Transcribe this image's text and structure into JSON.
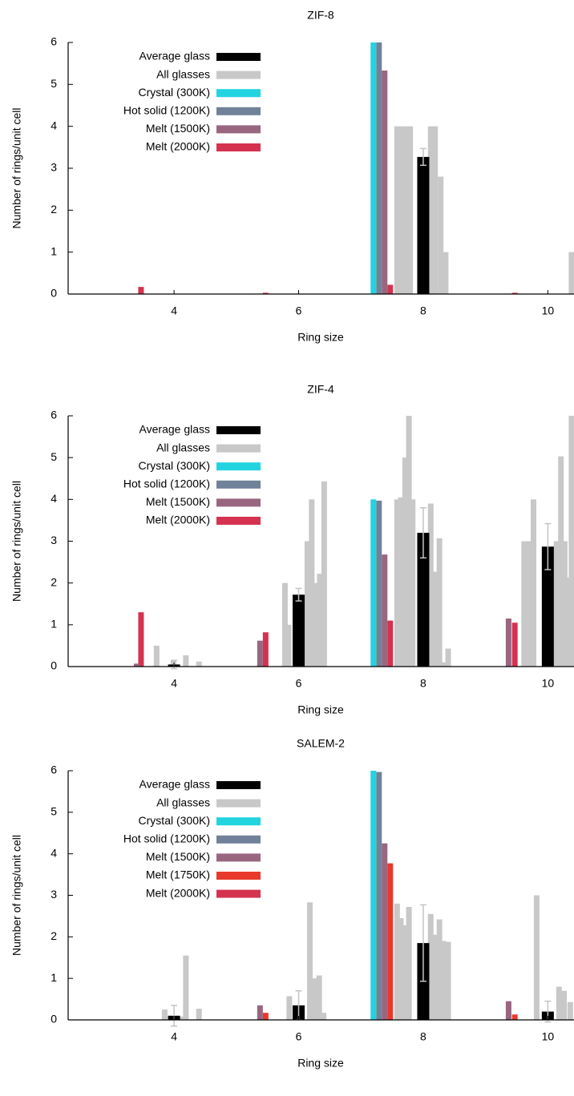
{
  "chart_data": [
    {
      "type": "bar",
      "title": "ZIF-8",
      "x_label": "Ring size",
      "y_label": "Number of rings/unit cell",
      "xlim": [
        2.3,
        10.42
      ],
      "ylim": [
        0,
        6
      ],
      "xticks": [
        4,
        6,
        8,
        10
      ],
      "yticks": [
        0,
        1,
        2,
        3,
        4,
        5,
        6
      ],
      "legend": "upper left",
      "series": [
        {
          "name": "Average glass",
          "color": "#000000",
          "x": [
            8.0
          ],
          "values": [
            3.27
          ],
          "errors": [
            0.2
          ]
        },
        {
          "name": "All glasses",
          "color": "#c8c8c8",
          "x": [
            7.58,
            7.65,
            7.72,
            7.79,
            8.12,
            8.19,
            8.28,
            8.36,
            10.38
          ],
          "values": [
            4.0,
            4.0,
            4.0,
            4.0,
            4.0,
            4.0,
            2.8,
            1.0,
            1.0
          ]
        },
        {
          "name": "Crystal (300K)",
          "color": "#22d3e0",
          "x": [
            7.2
          ],
          "values": [
            6.0
          ]
        },
        {
          "name": "Hot solid (1200K)",
          "color": "#708299",
          "x": [
            7.29
          ],
          "values": [
            6.0
          ]
        },
        {
          "name": "Melt (1500K)",
          "color": "#996680",
          "x": [
            7.38
          ],
          "values": [
            5.33
          ]
        },
        {
          "name": "Melt (2000K)",
          "color": "#d4324f",
          "x": [
            3.47,
            5.47,
            7.47,
            9.47
          ],
          "values": [
            0.17,
            0.03,
            0.22,
            0.03
          ]
        }
      ]
    },
    {
      "type": "bar",
      "title": "ZIF-4",
      "x_label": "Ring size",
      "y_label": "Number of rings/unit cell",
      "xlim": [
        2.3,
        10.42
      ],
      "ylim": [
        0,
        6
      ],
      "xticks": [
        4,
        6,
        8,
        10
      ],
      "yticks": [
        0,
        1,
        2,
        3,
        4,
        5,
        6
      ],
      "legend": "upper left",
      "series": [
        {
          "name": "Average glass",
          "color": "#000000",
          "x": [
            4.0,
            6.0,
            8.0,
            10.0
          ],
          "values": [
            0.05,
            1.72,
            3.2,
            2.87
          ],
          "errors": [
            0.1,
            0.15,
            0.6,
            0.55
          ]
        },
        {
          "name": "All glasses",
          "color": "#c8c8c8",
          "x": [
            3.72,
            3.99,
            4.19,
            4.4,
            5.78,
            5.84,
            6.14,
            6.21,
            6.28,
            6.34,
            6.41,
            7.58,
            7.64,
            7.71,
            7.77,
            7.83,
            8.12,
            8.19,
            8.26,
            8.32,
            8.4,
            9.62,
            9.69,
            9.77,
            10.14,
            10.21,
            10.27,
            10.33,
            10.38
          ],
          "values": [
            0.5,
            0.15,
            0.27,
            0.12,
            2.0,
            1.0,
            3.0,
            4.0,
            2.0,
            2.22,
            4.43,
            4.0,
            4.05,
            5.0,
            6.0,
            4.0,
            3.9,
            2.27,
            3.07,
            0.1,
            0.43,
            3.0,
            3.0,
            4.0,
            3.0,
            5.03,
            3.0,
            2.13,
            6.0
          ]
        },
        {
          "name": "Crystal (300K)",
          "color": "#22d3e0",
          "x": [
            7.2
          ],
          "values": [
            4.0
          ]
        },
        {
          "name": "Hot solid (1200K)",
          "color": "#708299",
          "x": [
            7.29
          ],
          "values": [
            3.97
          ]
        },
        {
          "name": "Melt (1500K)",
          "color": "#996680",
          "x": [
            3.4,
            5.38,
            7.38,
            9.37
          ],
          "values": [
            0.07,
            0.62,
            2.68,
            1.15
          ]
        },
        {
          "name": "Melt (2000K)",
          "color": "#d4324f",
          "x": [
            3.47,
            5.47,
            7.47,
            9.47
          ],
          "values": [
            1.3,
            0.82,
            1.1,
            1.05
          ]
        }
      ]
    },
    {
      "type": "bar",
      "title": "SALEM-2",
      "x_label": "Ring size",
      "y_label": "Number of rings/unit cell",
      "xlim": [
        2.3,
        10.42
      ],
      "ylim": [
        0,
        6
      ],
      "xticks": [
        4,
        6,
        8,
        10
      ],
      "yticks": [
        0,
        1,
        2,
        3,
        4,
        5,
        6
      ],
      "legend": "upper left",
      "series": [
        {
          "name": "Average glass",
          "color": "#000000",
          "x": [
            4.0,
            6.0,
            8.0,
            10.0
          ],
          "values": [
            0.1,
            0.35,
            1.85,
            0.2
          ],
          "errors": [
            0.25,
            0.35,
            0.92,
            0.25
          ]
        },
        {
          "name": "All glasses",
          "color": "#c8c8c8",
          "x": [
            3.85,
            4.14,
            4.19,
            4.4,
            5.85,
            6.18,
            6.26,
            6.33,
            6.4,
            7.58,
            7.64,
            7.71,
            7.77,
            8.12,
            8.19,
            8.26,
            8.32,
            8.4,
            9.82,
            10.18,
            10.26,
            10.36
          ],
          "values": [
            0.25,
            0.08,
            1.55,
            0.27,
            0.57,
            2.83,
            1.0,
            1.07,
            0.17,
            2.8,
            2.45,
            2.28,
            2.72,
            2.55,
            2.05,
            2.42,
            1.9,
            1.88,
            3.0,
            0.8,
            0.7,
            0.43
          ]
        },
        {
          "name": "Crystal (300K)",
          "color": "#22d3e0",
          "x": [
            7.2
          ],
          "values": [
            6.0
          ]
        },
        {
          "name": "Hot solid (1200K)",
          "color": "#708299",
          "x": [
            7.29
          ],
          "values": [
            5.97
          ]
        },
        {
          "name": "Melt (1500K)",
          "color": "#996680",
          "x": [
            5.38,
            7.38,
            9.37
          ],
          "values": [
            0.35,
            4.25,
            0.45
          ]
        },
        {
          "name": "Melt (1750K)",
          "color": "#e8392a",
          "x": [
            5.47,
            7.47,
            9.47
          ],
          "values": [
            0.17,
            3.77,
            0.13
          ]
        },
        {
          "name": "Melt (2000K)",
          "color": "#d4324f",
          "x": [],
          "values": []
        }
      ]
    }
  ]
}
